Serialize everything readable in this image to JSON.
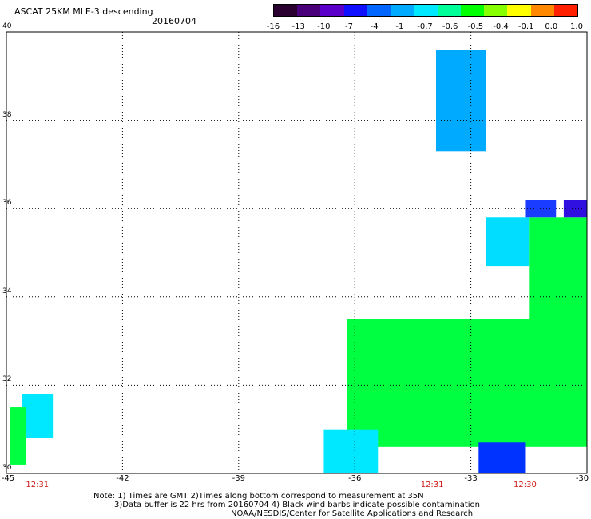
{
  "title": "ASCAT 25KM MLE-3 descending",
  "date": "20160704",
  "colorbar": {
    "labels": [
      "-16",
      "-13",
      "-10",
      "-7",
      "-4",
      "-1",
      "-0.7",
      "-0.6",
      "-0.5",
      "-0.4",
      "-0.1",
      "0.0",
      "1.0"
    ],
    "colors": [
      "#2a0030",
      "#4a007a",
      "#5a00c8",
      "#1010ff",
      "#0066ff",
      "#00aaff",
      "#00e8ff",
      "#00ff99",
      "#00ff00",
      "#88ff00",
      "#ffff00",
      "#ff8800",
      "#ff2000"
    ]
  },
  "axes": {
    "lon_ticks": [
      "-45",
      "-42",
      "-39",
      "-36",
      "-33",
      "-30"
    ],
    "lat_ticks": [
      "40",
      "38",
      "36",
      "34",
      "32",
      "30"
    ],
    "lon_range": [
      -45,
      -30
    ],
    "lat_range": [
      30,
      40
    ]
  },
  "times": [
    {
      "lon": -44.2,
      "label": "12:31"
    },
    {
      "lon": -34.0,
      "label": "12:31"
    },
    {
      "lon": -31.6,
      "label": "12:30"
    }
  ],
  "notes": {
    "line1": "Note: 1) Times are GMT 2)Times along bottom correspond to measurement at 35N",
    "line2": "3)Data buffer is 22 hrs from 20160704 4) Black wind barbs indicate possible contamination",
    "line3": "NOAA/NESDIS/Center for Satellite Applications and Research"
  },
  "regions": [
    {
      "name": "blue-swath",
      "color": "#00aaff",
      "lon": [
        -33.9,
        -32.6
      ],
      "lat": [
        37.3,
        39.6
      ]
    },
    {
      "name": "cyan-patch-east",
      "color": "#00ddff",
      "lon": [
        -32.6,
        -31.5
      ],
      "lat": [
        34.7,
        35.8
      ]
    },
    {
      "name": "green-region-east",
      "color": "#00ff40",
      "lon": [
        -31.5,
        -30.0
      ],
      "lat": [
        32.0,
        35.8
      ]
    },
    {
      "name": "green-region-main",
      "color": "#00ff40",
      "lon": [
        -36.2,
        -30.0
      ],
      "lat": [
        30.6,
        33.5
      ]
    },
    {
      "name": "cyan-patch-southwest",
      "color": "#00e8ff",
      "lon": [
        -36.8,
        -35.4
      ],
      "lat": [
        30.0,
        31.0
      ]
    },
    {
      "name": "blue-spot-south",
      "color": "#0033ff",
      "lon": [
        -32.8,
        -31.6
      ],
      "lat": [
        30.0,
        30.7
      ]
    },
    {
      "name": "cyan-patch-west",
      "color": "#00e8ff",
      "lon": [
        -44.6,
        -43.8
      ],
      "lat": [
        30.8,
        31.8
      ]
    },
    {
      "name": "green-patch-west",
      "color": "#00ff40",
      "lon": [
        -44.9,
        -44.5
      ],
      "lat": [
        30.2,
        31.5
      ]
    },
    {
      "name": "blue-bar-ne-1",
      "color": "#1a3cff",
      "lon": [
        -31.6,
        -30.8
      ],
      "lat": [
        35.8,
        36.2
      ]
    },
    {
      "name": "blue-bar-ne-2",
      "color": "#3010e0",
      "lon": [
        -30.6,
        -30.0
      ],
      "lat": [
        35.8,
        36.2
      ]
    }
  ]
}
